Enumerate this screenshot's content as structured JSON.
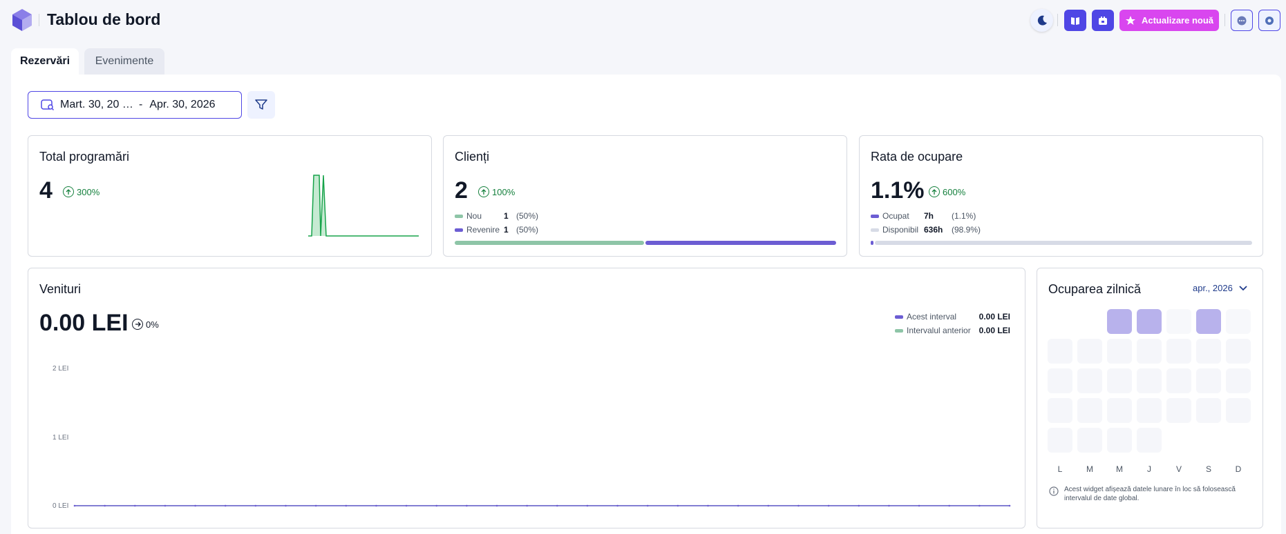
{
  "header": {
    "title": "Tablou de bord",
    "update_label": "Actualizare nouă"
  },
  "tabs": [
    {
      "label": "Rezervări",
      "active": true
    },
    {
      "label": "Evenimente",
      "active": false
    }
  ],
  "filters": {
    "date_start": "Mart. 30, 20 …",
    "date_sep": "-",
    "date_end": "Apr. 30, 2026"
  },
  "cards": {
    "total": {
      "title": "Total programări",
      "value": "4",
      "trend": "300%",
      "sparkline": [
        0,
        0,
        1,
        1,
        1,
        0,
        1,
        0,
        0,
        0,
        0,
        0,
        0,
        0,
        0,
        0,
        0,
        0,
        0,
        0
      ]
    },
    "clients": {
      "title": "Clienți",
      "value": "2",
      "trend": "100%",
      "legend": [
        {
          "label": "Nou",
          "value": "1",
          "pct": "(50%)",
          "color": "#8ec5a7",
          "fraction": 0.5
        },
        {
          "label": "Revenire",
          "value": "1",
          "pct": "(50%)",
          "color": "#6c5dd3",
          "fraction": 0.5
        }
      ]
    },
    "occupancy": {
      "title": "Rata de ocupare",
      "value": "1.1%",
      "trend": "600%",
      "legend": [
        {
          "label": "Ocupat",
          "value": "7h",
          "pct": "(1.1%)",
          "color": "#6c5dd3",
          "fraction": 0.011
        },
        {
          "label": "Disponibil",
          "value": "636h",
          "pct": "(98.9%)",
          "color": "#d7dbe6",
          "fraction": 0.989
        }
      ]
    }
  },
  "revenue": {
    "title": "Venituri",
    "value": "0.00 LEI",
    "trend": "0%",
    "legend": [
      {
        "label": "Acest interval",
        "value": "0.00 LEI",
        "color": "#6c5dd3"
      },
      {
        "label": "Intervalul anterior",
        "value": "0.00 LEI",
        "color": "#8ec5a7"
      }
    ],
    "chart_data": {
      "type": "line",
      "x": [
        1,
        2,
        3,
        4,
        5,
        6,
        7,
        8,
        9,
        10,
        11,
        12,
        13,
        14,
        15,
        16,
        17,
        18,
        19,
        20,
        21,
        22,
        23,
        24,
        25,
        26,
        27,
        28,
        29,
        30,
        31,
        32
      ],
      "series": [
        {
          "name": "Acest interval",
          "values": [
            0,
            0,
            0,
            0,
            0,
            0,
            0,
            0,
            0,
            0,
            0,
            0,
            0,
            0,
            0,
            0,
            0,
            0,
            0,
            0,
            0,
            0,
            0,
            0,
            0,
            0,
            0,
            0,
            0,
            0,
            0,
            0
          ]
        },
        {
          "name": "Intervalul anterior",
          "values": [
            0,
            0,
            0,
            0,
            0,
            0,
            0,
            0,
            0,
            0,
            0,
            0,
            0,
            0,
            0,
            0,
            0,
            0,
            0,
            0,
            0,
            0,
            0,
            0,
            0,
            0,
            0,
            0,
            0,
            0,
            0,
            0
          ]
        }
      ],
      "yticks": [
        "0 LEI",
        "1 LEI",
        "2 LEI"
      ],
      "ylim": [
        0,
        2
      ]
    }
  },
  "daily": {
    "title": "Ocuparea zilnică",
    "month": "apr., 2026",
    "weekdays": [
      "L",
      "M",
      "M",
      "J",
      "V",
      "S",
      "D"
    ],
    "first_weekday_index": 2,
    "days_in_month": 30,
    "busy_days": [
      1,
      2,
      4
    ],
    "info": "Acest widget afișează datele lunare în loc să folosească intervalul de date global."
  }
}
